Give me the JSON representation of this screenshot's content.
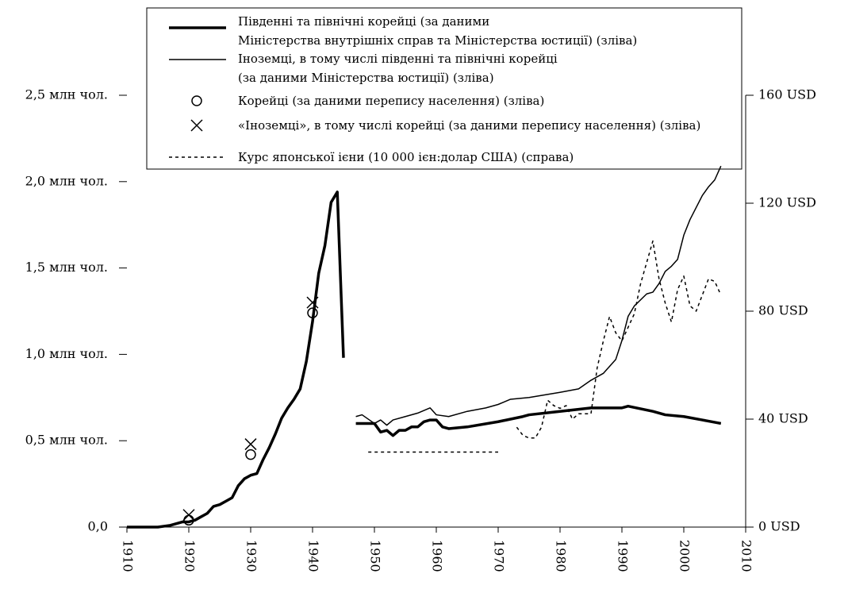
{
  "chart_data": {
    "type": "line",
    "xlim": [
      1910,
      2010
    ],
    "xticks": [
      1910,
      1920,
      1930,
      1940,
      1950,
      1960,
      1970,
      1980,
      1990,
      2000,
      2010
    ],
    "ylim": [
      0,
      2.5
    ],
    "yticks": [
      {
        "value": 0,
        "label": "0,0"
      },
      {
        "value": 0.5,
        "label": "0,5 млн чол."
      },
      {
        "value": 1.0,
        "label": "1,0 млн чол."
      },
      {
        "value": 1.5,
        "label": "1,5 млн чол."
      },
      {
        "value": 2.0,
        "label": "2,0 млн чол."
      },
      {
        "value": 2.5,
        "label": "2,5 млн чол."
      }
    ],
    "y2lim": [
      0,
      160
    ],
    "y2ticks": [
      {
        "value": 0,
        "label": "0 USD"
      },
      {
        "value": 40,
        "label": "40 USD"
      },
      {
        "value": 80,
        "label": "80 USD"
      },
      {
        "value": 120,
        "label": "120 USD"
      },
      {
        "value": 160,
        "label": "160 USD"
      }
    ],
    "series": [
      {
        "name": "Південні та північні корейці (за даними\nМіністерства внутрішніх справ та Міністерства юстиції) (зліва)",
        "color": "#000000",
        "style": "thick",
        "x": [
          1910,
          1915,
          1917,
          1919,
          1920,
          1921,
          1922,
          1923,
          1924,
          1925,
          1926,
          1927,
          1928,
          1929,
          1930,
          1931,
          1932,
          1933,
          1934,
          1935,
          1936,
          1937,
          1938,
          1939,
          1940,
          1941,
          1942,
          1943,
          1944,
          1945,
          1946,
          1947,
          1950,
          1951,
          1952,
          1953,
          1954,
          1955,
          1956,
          1957,
          1958,
          1959,
          1960,
          1961,
          1962,
          1965,
          1970,
          1974,
          1975,
          1980,
          1985,
          1990,
          1991,
          1995,
          1997,
          2000,
          2003,
          2006
        ],
        "values": [
          0,
          0,
          0.01,
          0.03,
          0.03,
          0.04,
          0.06,
          0.08,
          0.12,
          0.13,
          0.15,
          0.17,
          0.24,
          0.28,
          0.3,
          0.31,
          0.39,
          0.46,
          0.54,
          0.63,
          0.69,
          0.74,
          0.8,
          0.96,
          1.19,
          1.47,
          1.63,
          1.88,
          1.94,
          0.98,
          null,
          0.6,
          0.6,
          0.55,
          0.56,
          0.53,
          0.56,
          0.56,
          0.58,
          0.58,
          0.61,
          0.62,
          0.62,
          0.58,
          0.57,
          0.58,
          0.61,
          0.64,
          0.65,
          0.67,
          0.69,
          0.69,
          0.7,
          0.67,
          0.65,
          0.64,
          0.62,
          0.6
        ]
      },
      {
        "name": "Іноземці, в тому числі південні та північні корейці\n(за даними Міністерства юстиції) (зліва)",
        "color": "#000000",
        "style": "thin",
        "x": [
          1947,
          1948,
          1950,
          1951,
          1952,
          1953,
          1955,
          1957,
          1959,
          1960,
          1962,
          1965,
          1968,
          1970,
          1972,
          1975,
          1980,
          1983,
          1985,
          1987,
          1989,
          1990,
          1991,
          1992,
          1994,
          1995,
          1996,
          1997,
          1998,
          1999,
          2000,
          2001,
          2002,
          2003,
          2004,
          2005,
          2006
        ],
        "values": [
          0.64,
          0.65,
          0.6,
          0.62,
          0.59,
          0.62,
          0.64,
          0.66,
          0.69,
          0.65,
          0.64,
          0.67,
          0.69,
          0.71,
          0.74,
          0.75,
          0.78,
          0.8,
          0.85,
          0.89,
          0.97,
          1.08,
          1.22,
          1.28,
          1.35,
          1.36,
          1.41,
          1.48,
          1.51,
          1.55,
          1.69,
          1.78,
          1.85,
          1.92,
          1.97,
          2.01,
          2.09
        ]
      },
      {
        "name": "Корейці (за даними перепису населення) (зліва)",
        "color": "#000000",
        "style": "circle",
        "x": [
          1920,
          1930,
          1940
        ],
        "values": [
          0.04,
          0.42,
          1.24
        ]
      },
      {
        "name": "«Іноземці», в тому числі корейці (за даними перепису населення) (зліва)",
        "color": "#000000",
        "style": "cross",
        "x": [
          1920,
          1930,
          1940
        ],
        "values": [
          0.07,
          0.48,
          1.3
        ]
      },
      {
        "name": "Курс японської ієни (10 000 ієн:долар США) (справа)",
        "color": "#000000",
        "style": "dotted",
        "axis": "y2",
        "x": [
          1949,
          1970,
          1971,
          1973,
          1974,
          1975,
          1976,
          1977,
          1978,
          1979,
          1980,
          1981,
          1982,
          1983,
          1984,
          1985,
          1986,
          1987,
          1988,
          1989,
          1990,
          1991,
          1992,
          1993,
          1994,
          1995,
          1996,
          1997,
          1998,
          1999,
          2000,
          2001,
          2002,
          2003,
          2004,
          2005,
          2006
        ],
        "values": [
          27.8,
          27.8,
          null,
          37,
          34,
          33,
          33,
          37,
          47,
          45,
          44,
          45,
          40,
          42,
          42,
          42,
          59,
          69,
          78,
          72,
          69,
          74,
          79,
          90,
          98,
          106,
          92,
          83,
          76,
          88,
          93,
          82,
          80,
          86,
          92,
          91,
          86
        ]
      }
    ]
  }
}
